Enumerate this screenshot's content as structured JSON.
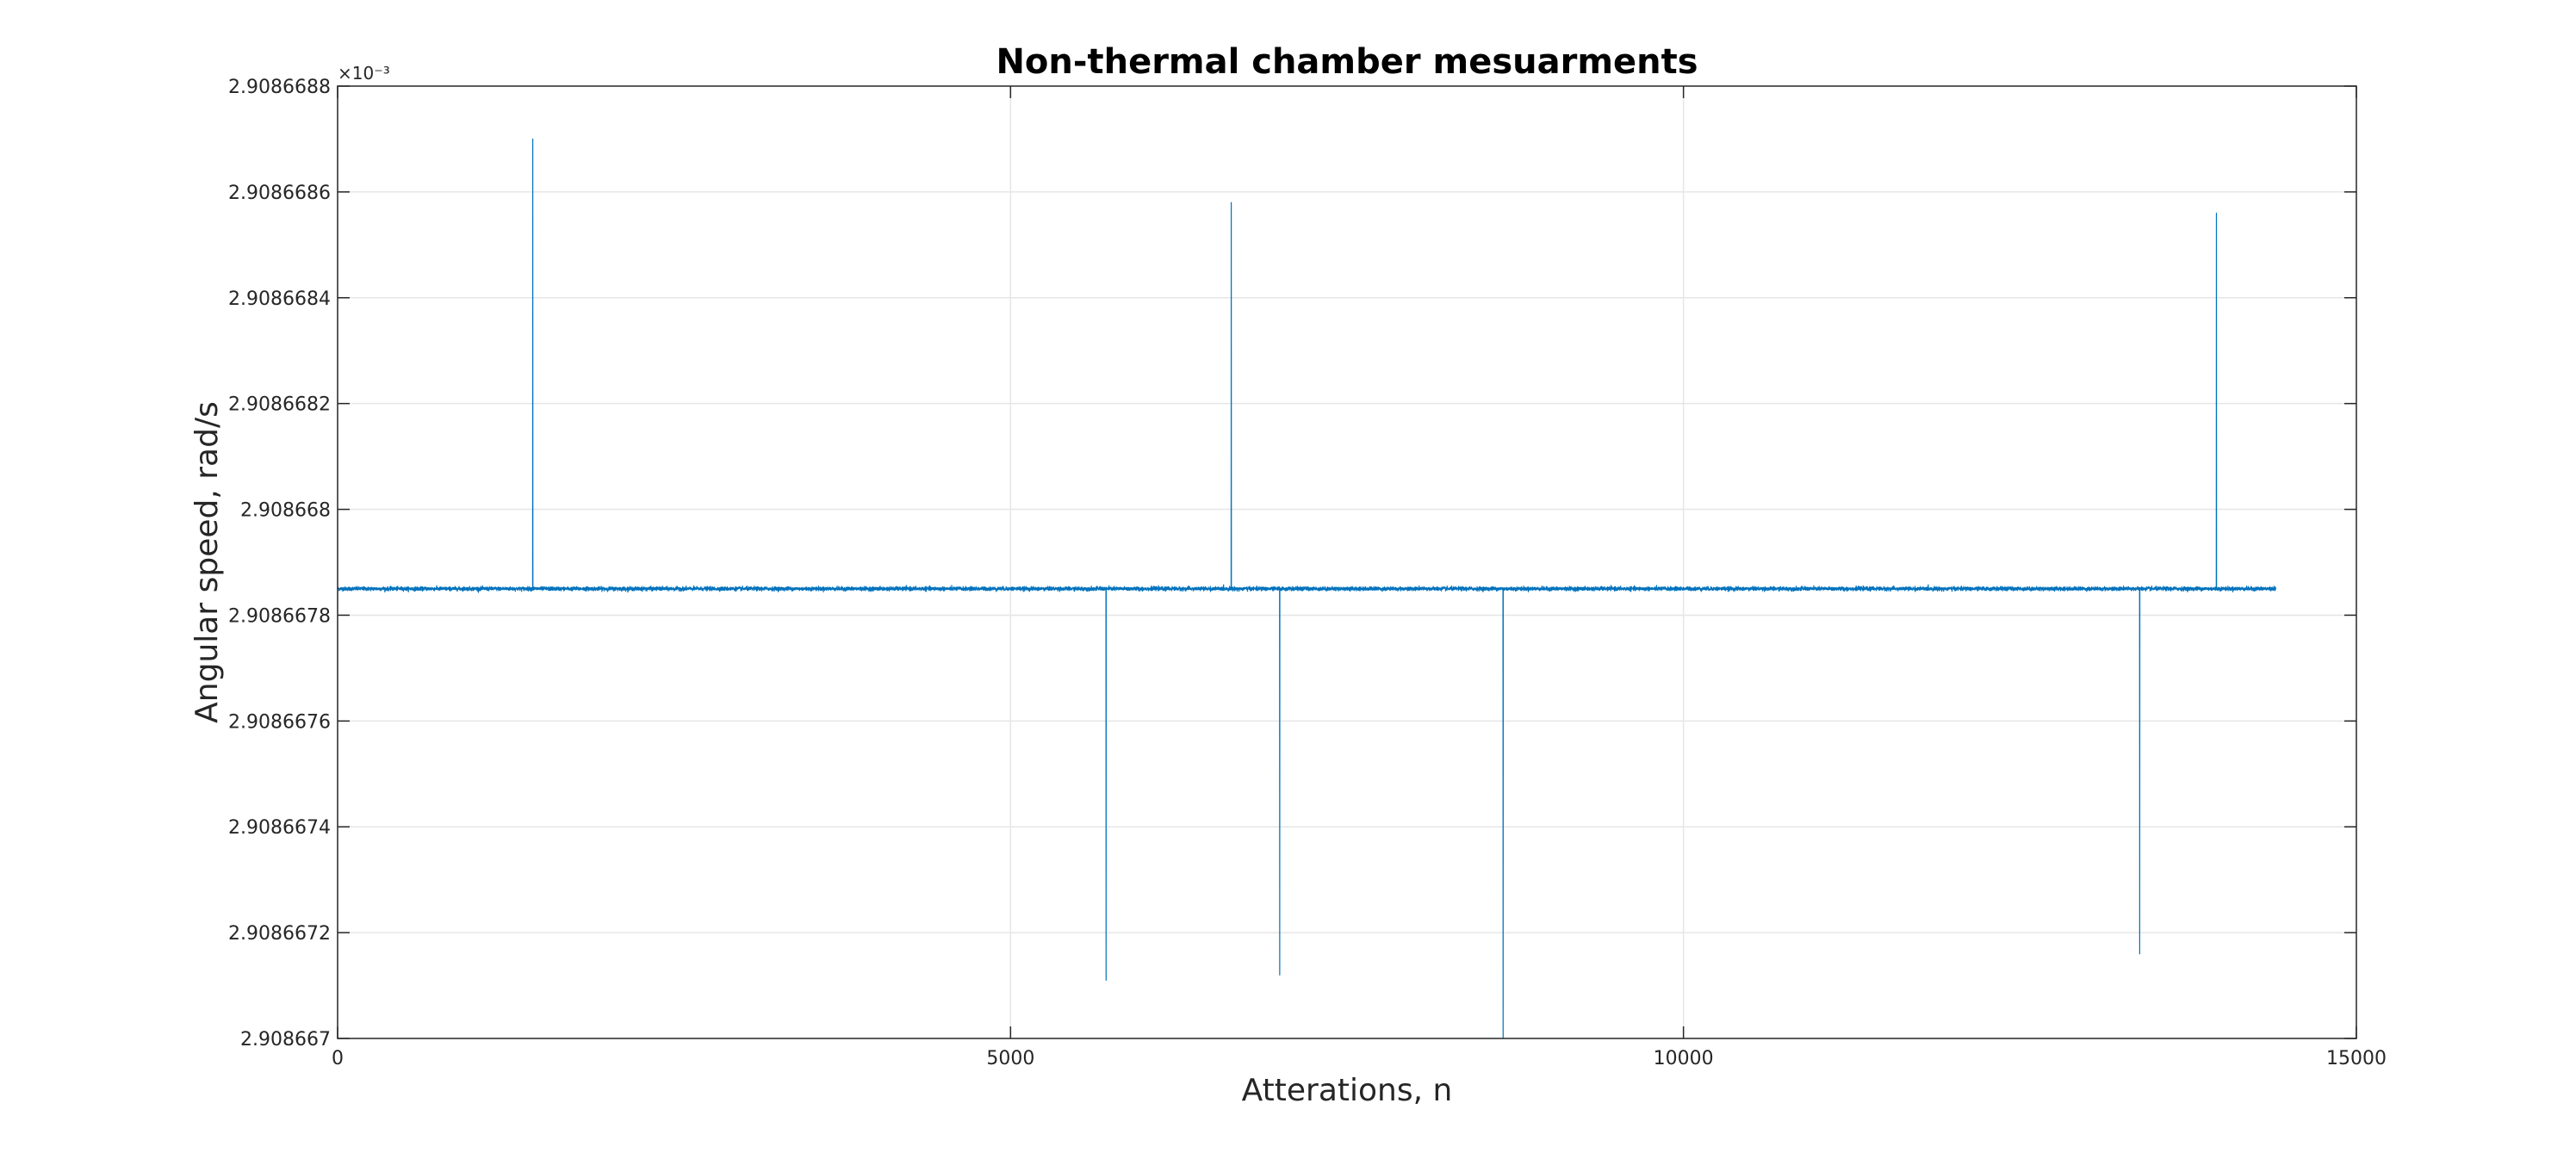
{
  "chart_data": {
    "type": "line",
    "title": "Non-thermal chamber mesuarments",
    "xlabel": "Atterations, n",
    "ylabel": "Angular speed, rad/s",
    "xlim": [
      0,
      15000
    ],
    "ylim": [
      2.908667,
      2.9086688
    ],
    "y_exponent_label": "×10⁻³",
    "x_ticks": [
      {
        "value": 0,
        "label": "0"
      },
      {
        "value": 5000,
        "label": "5000"
      },
      {
        "value": 10000,
        "label": "10000"
      },
      {
        "value": 15000,
        "label": "15000"
      }
    ],
    "y_ticks": [
      {
        "value": 2.908667,
        "label": "2.908667"
      },
      {
        "value": 2.9086672,
        "label": "2.9086672"
      },
      {
        "value": 2.9086674,
        "label": "2.9086674"
      },
      {
        "value": 2.9086676,
        "label": "2.9086676"
      },
      {
        "value": 2.9086678,
        "label": "2.9086678"
      },
      {
        "value": 2.908668,
        "label": "2.908668"
      },
      {
        "value": 2.9086682,
        "label": "2.9086682"
      },
      {
        "value": 2.9086684,
        "label": "2.9086684"
      },
      {
        "value": 2.9086686,
        "label": "2.9086686"
      },
      {
        "value": 2.9086688,
        "label": "2.9086688"
      }
    ],
    "grid": true,
    "legend": "none",
    "series_color": "#0072BD",
    "series": [
      {
        "n_points": 14400,
        "x_range": [
          1,
          14400
        ],
        "mean": 2.90866785,
        "std": 1.75e-09,
        "min": 2.908667,
        "max": 2.9086687,
        "notable_points": [
          {
            "x": 1450,
            "y": 2.9086687
          },
          {
            "x": 6640,
            "y": 2.90866858
          },
          {
            "x": 13960,
            "y": 2.90866856
          },
          {
            "x": 8660,
            "y": 2.908667
          },
          {
            "x": 5710,
            "y": 2.90866711
          },
          {
            "x": 13390,
            "y": 2.90866716
          },
          {
            "x": 7000,
            "y": 2.90866712
          }
        ]
      }
    ]
  }
}
